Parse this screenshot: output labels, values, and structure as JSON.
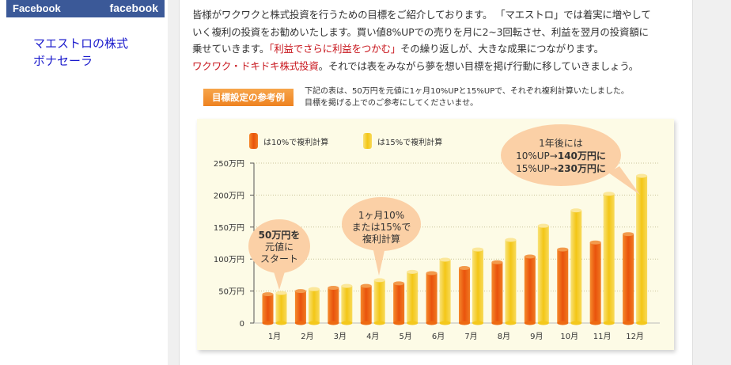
{
  "facebook": {
    "label": "Facebook",
    "logo": "facebook"
  },
  "sidebar": {
    "link_line1": "マエストロの株式",
    "link_line2": "ボナセーラ"
  },
  "intro": {
    "line1": "皆様がワクワクと株式投資を行うための目標をご紹介しております。 「マエストロ」では着実に増やして",
    "line2": "いく複利の投資をお勧めいたします。買い値8%UPでの売りを月に2~3回転させ、利益を翌月の投資額に",
    "line3_a": "乗せていきます。",
    "line3_red": "「利益でさらに利益をつかむ」",
    "line3_b": "その繰り返しが、大きな成果につながります。",
    "line4_red": "ワクワク・ドキドキ株式投資",
    "line4_b": "。それでは表をみながら夢を想い目標を掲げ行動に移していきましょう。"
  },
  "reference": {
    "badge": "目標設定の参考例",
    "text_line1": "下記の表は、50万円を元値に1ヶ月10%UPと15%UPで、それぞれ複利計算いたしました。",
    "text_line2": "目標を掲げる上でのご参考にしてくださいませ。"
  },
  "chart_data": {
    "type": "bar",
    "categories": [
      "1月",
      "2月",
      "3月",
      "4月",
      "5月",
      "6月",
      "7月",
      "8月",
      "9月",
      "10月",
      "11月",
      "12月"
    ],
    "series": [
      {
        "name": "は10%で複利計算",
        "color": "#ee6a12",
        "values": [
          45,
          50,
          55,
          58,
          62,
          78,
          86,
          95,
          104,
          115,
          126,
          139
        ]
      },
      {
        "name": "は15%で複利計算",
        "color": "#f4c81c",
        "values": [
          47,
          53,
          58,
          67,
          80,
          99,
          115,
          130,
          152,
          176,
          202,
          230
        ]
      }
    ],
    "yticks": [
      {
        "value": 0,
        "label": "0"
      },
      {
        "value": 50,
        "label": "50万円"
      },
      {
        "value": 100,
        "label": "100万円"
      },
      {
        "value": 150,
        "label": "150万円"
      },
      {
        "value": 200,
        "label": "200万円"
      },
      {
        "value": 250,
        "label": "250万円"
      }
    ],
    "ylim": [
      0,
      250
    ],
    "callouts": {
      "start": [
        "50万円を",
        "元値に",
        "スタート"
      ],
      "monthly": [
        "1ヶ月10%",
        "または15%で",
        "複利計算"
      ],
      "year_a": "1年後には",
      "year_b": "10%UP→",
      "year_b_bold": "140万円に",
      "year_c": "15%UP→",
      "year_c_bold": "230万円に"
    }
  }
}
